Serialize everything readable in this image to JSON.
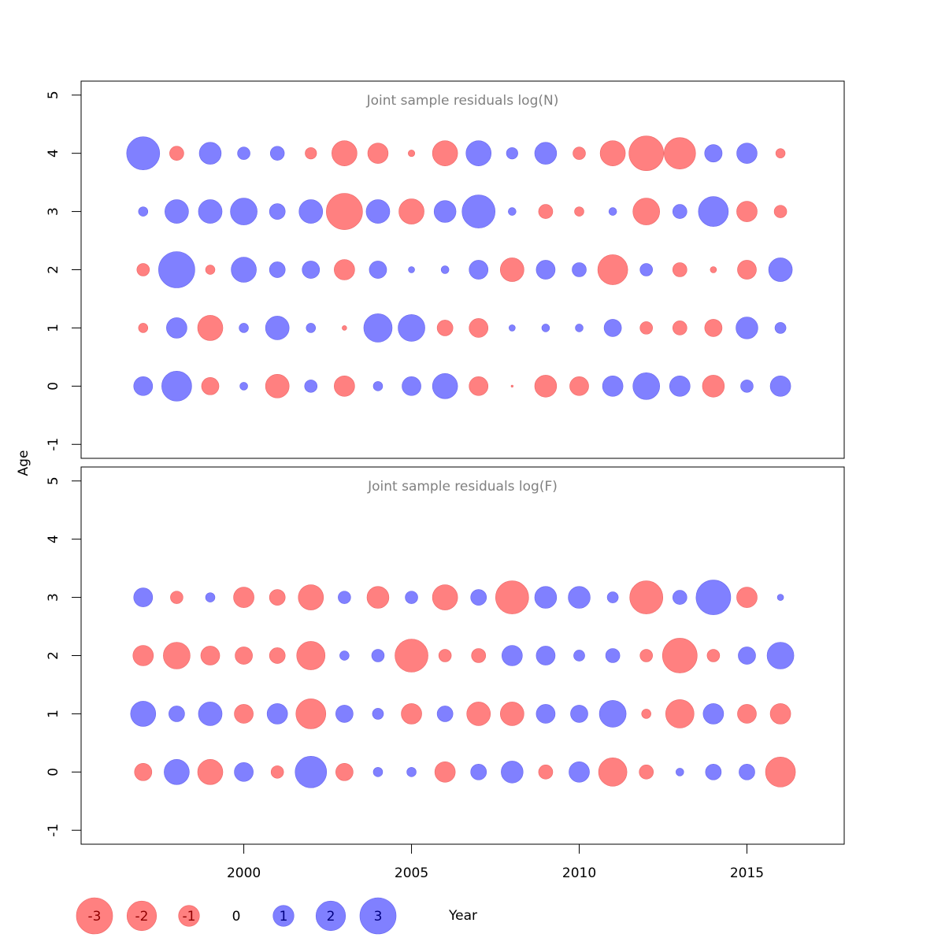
{
  "chart_data": [
    {
      "type": "bubble",
      "title": "Joint sample residuals log(N)",
      "ylabel": "Age",
      "x": [
        1997,
        1998,
        1999,
        2000,
        2001,
        2002,
        2003,
        2004,
        2005,
        2006,
        2007,
        2008,
        2009,
        2010,
        2011,
        2012,
        2013,
        2014,
        2015,
        2016
      ],
      "ages": [
        0,
        1,
        2,
        3,
        4
      ],
      "values": [
        [
          0.82,
          2.05,
          -0.69,
          0.14,
          -1.28,
          0.36,
          -0.96,
          0.2,
          0.82,
          1.45,
          -0.82,
          -0.01,
          -1.1,
          -0.82,
          0.96,
          1.64,
          0.96,
          -1.1,
          0.36,
          0.96
        ],
        [
          -0.2,
          0.96,
          -1.45,
          0.2,
          1.28,
          0.2,
          -0.05,
          1.84,
          1.64,
          -0.57,
          -0.82,
          0.09,
          0.14,
          0.14,
          0.69,
          -0.36,
          -0.46,
          -0.69,
          1.1,
          0.28
        ],
        [
          -0.36,
          3.0,
          -0.2,
          1.45,
          0.57,
          0.69,
          -0.96,
          0.69,
          0.09,
          0.14,
          0.82,
          -1.28,
          0.82,
          0.46,
          -2.05,
          0.36,
          -0.46,
          -0.09,
          -0.82,
          1.28
        ],
        [
          0.2,
          1.28,
          1.28,
          1.64,
          0.57,
          1.28,
          -3.0,
          1.28,
          -1.45,
          1.1,
          2.5,
          0.14,
          -0.46,
          -0.2,
          0.14,
          -1.64,
          0.46,
          2.05,
          -0.96,
          -0.36
        ],
        [
          2.5,
          -0.46,
          1.1,
          0.36,
          0.45,
          -0.3,
          -1.45,
          -0.95,
          -0.1,
          -1.45,
          1.45,
          0.3,
          1.1,
          -0.36,
          -1.45,
          -2.75,
          -2.27,
          0.7,
          0.95,
          -0.2
        ]
      ],
      "xlim": [
        1995.15,
        2017.9
      ],
      "ylim": [
        -1.24,
        5.24
      ],
      "yticks": [
        -1,
        0,
        1,
        2,
        3,
        4,
        5
      ],
      "positive_color": "#8080ff",
      "negative_color": "#ff8080"
    },
    {
      "type": "bubble",
      "title": "Joint sample residuals log(F)",
      "xlabel": "Year",
      "x": [
        1997,
        1998,
        1999,
        2000,
        2001,
        2002,
        2003,
        2004,
        2005,
        2006,
        2007,
        2008,
        2009,
        2010,
        2011,
        2012,
        2013,
        2014,
        2015,
        2016
      ],
      "ages": [
        0,
        1,
        2,
        3
      ],
      "values": [
        [
          -0.69,
          1.45,
          -1.45,
          0.82,
          -0.36,
          2.27,
          -0.69,
          0.2,
          0.2,
          -0.96,
          0.57,
          1.1,
          -0.46,
          0.96,
          -1.84,
          -0.46,
          0.14,
          0.57,
          0.57,
          -2.05
        ],
        [
          1.45,
          0.57,
          1.28,
          -0.82,
          0.96,
          -2.05,
          0.69,
          0.28,
          -0.96,
          0.57,
          -1.28,
          -1.28,
          0.82,
          0.69,
          1.64,
          -0.2,
          -1.84,
          0.96,
          -0.82,
          -0.96
        ],
        [
          -0.96,
          -1.64,
          -0.82,
          -0.69,
          -0.57,
          -1.84,
          0.2,
          0.36,
          -2.5,
          -0.36,
          -0.46,
          0.96,
          0.82,
          0.28,
          0.46,
          -0.36,
          -2.75,
          -0.36,
          0.69,
          1.64
        ],
        [
          0.82,
          -0.36,
          0.2,
          -0.96,
          -0.57,
          -1.45,
          0.36,
          -1.1,
          0.36,
          -1.45,
          0.57,
          -2.5,
          1.1,
          1.1,
          0.28,
          -2.5,
          0.46,
          2.75,
          -0.96,
          0.09
        ]
      ],
      "xlim": [
        1995.15,
        2017.9
      ],
      "ylim": [
        -1.24,
        5.24
      ],
      "yticks": [
        -1,
        0,
        1,
        2,
        3,
        4,
        5
      ],
      "xticks": [
        2000,
        2005,
        2010,
        2015
      ],
      "positive_color": "#8080ff",
      "negative_color": "#ff8080",
      "size_legend": [
        -3,
        -2,
        -1,
        0,
        1,
        2,
        3
      ]
    }
  ]
}
